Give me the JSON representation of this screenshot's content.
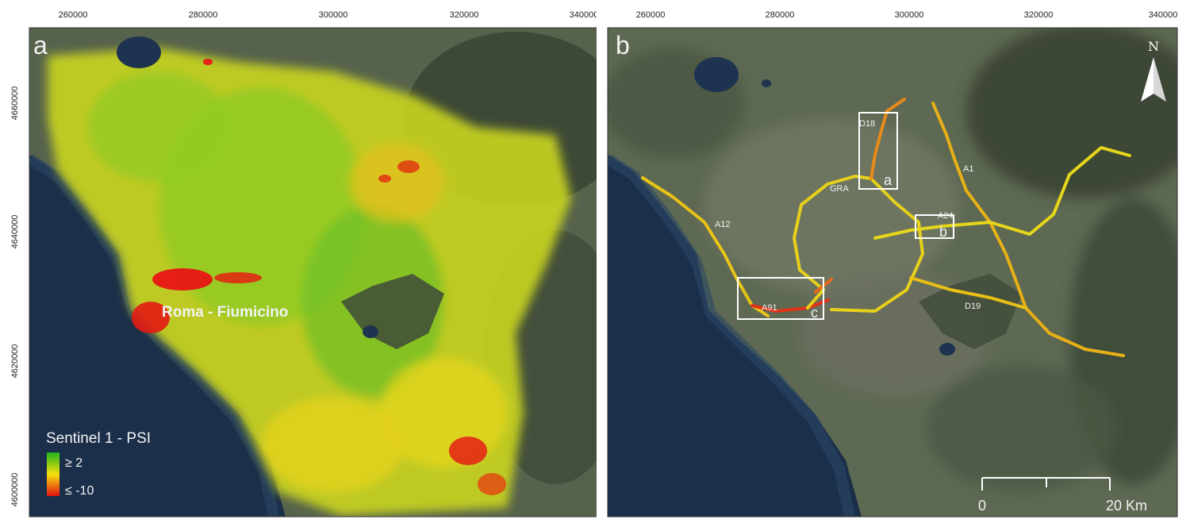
{
  "panel_a": {
    "letter": "a",
    "place_label": "Roma - Fiumicino",
    "legend": {
      "title": "Sentinel 1 - PSI",
      "high_label": "≥ 2",
      "low_label": "≤ -10",
      "high_color": "#1fb41f",
      "mid_color": "#f5e10d",
      "low_color": "#e01010"
    }
  },
  "panel_b": {
    "letter": "b",
    "road_labels": {
      "a12": "A12",
      "gra": "GRA",
      "d18": "D18",
      "a1": "A1",
      "a24": "A24",
      "a91": "A91",
      "d19": "D19"
    },
    "box_labels": {
      "a": "a",
      "b": "b",
      "c": "c"
    },
    "north_label": "N",
    "scalebar": {
      "zero": "0",
      "end": "20 Km"
    }
  },
  "axes": {
    "x_ticks": [
      "260000",
      "280000",
      "300000",
      "320000",
      "340000"
    ],
    "y_ticks": [
      "4660000",
      "4640000",
      "4620000",
      "4600000"
    ]
  },
  "colors": {
    "sea": "#1c2f4a",
    "land": "#5a6650",
    "lake": "#1d3350",
    "frame": "#333333"
  }
}
